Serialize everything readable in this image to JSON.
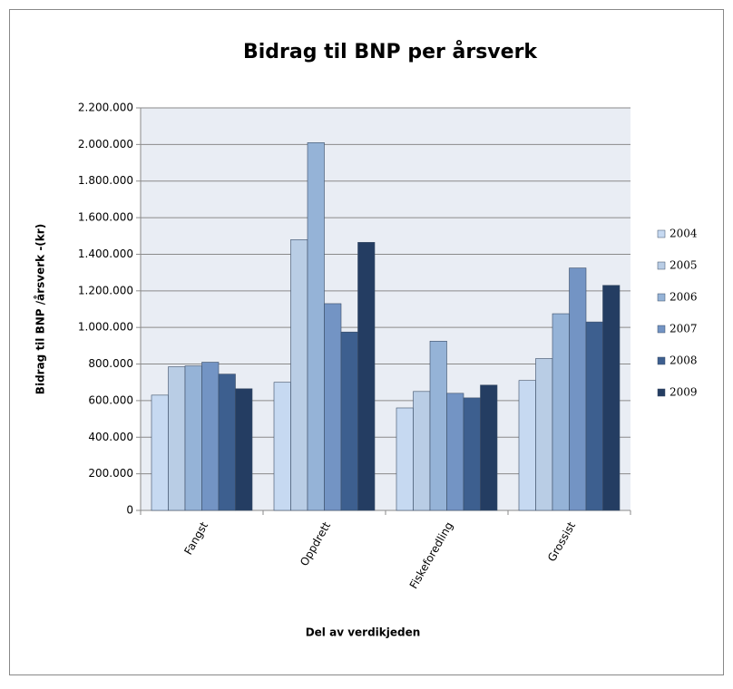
{
  "chart_data": {
    "type": "bar",
    "title": "Bidrag til BNP per årsverk",
    "x_label": "Del av verdikjeden",
    "y_label": "Bidrag til BNP /årsverk -(kr)",
    "categories": [
      "Fangst",
      "Oppdrett",
      "Fiskeforedling",
      "Grossist"
    ],
    "series": [
      {
        "name": "2004",
        "color": "#c6d9f1",
        "values": [
          630000,
          700000,
          560000,
          710000
        ]
      },
      {
        "name": "2005",
        "color": "#b9cde5",
        "values": [
          785000,
          1480000,
          650000,
          830000
        ]
      },
      {
        "name": "2006",
        "color": "#95b3d7",
        "values": [
          790000,
          2010000,
          925000,
          1075000
        ]
      },
      {
        "name": "2007",
        "color": "#7394c4",
        "values": [
          810000,
          1130000,
          640000,
          1325000
        ]
      },
      {
        "name": "2008",
        "color": "#3d5f8f",
        "values": [
          745000,
          975000,
          615000,
          1030000
        ]
      },
      {
        "name": "2009",
        "color": "#243d62",
        "values": [
          665000,
          1465000,
          685000,
          1230000
        ]
      }
    ],
    "ylim": [
      0,
      2200000
    ],
    "yticks": [
      0,
      {
        "value": 200000,
        "label": "200.000"
      },
      {
        "value": 400000,
        "label": "400.000"
      },
      {
        "value": 600000,
        "label": "600.000"
      },
      {
        "value": 800000,
        "label": "800.000"
      },
      {
        "value": 1000000,
        "label": "1.000.000"
      },
      {
        "value": 1200000,
        "label": "1.200.000"
      },
      {
        "value": 1400000,
        "label": "1.400.000"
      },
      {
        "value": 1600000,
        "label": "1.600.000"
      },
      {
        "value": 1800000,
        "label": "1.800.000"
      },
      {
        "value": 2000000,
        "label": "2.000.000"
      },
      {
        "value": 2200000,
        "label": "2.200.000"
      }
    ],
    "grid": true,
    "legend": "right"
  }
}
